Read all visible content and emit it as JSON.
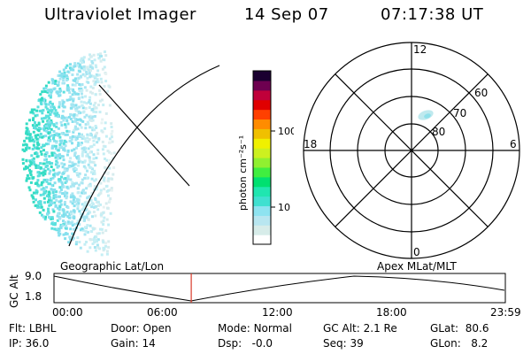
{
  "header": {
    "instrument": "Ultraviolet Imager",
    "date": "14 Sep 07",
    "time": "07:17:38 UT"
  },
  "colorbar": {
    "label": "photon cm⁻²s⁻¹",
    "ticks": [
      "100",
      "10"
    ],
    "colors": [
      "#ffffff",
      "#d7ece9",
      "#b8e6f0",
      "#8ee3f0",
      "#40e0d0",
      "#20e6b0",
      "#00e070",
      "#40ee40",
      "#90f030",
      "#ccf020",
      "#f0f000",
      "#f0c000",
      "#ff8c00",
      "#ff4000",
      "#e00000",
      "#c0003a",
      "#6e0050",
      "#1a0030"
    ]
  },
  "polar": {
    "mlt_labels": [
      "12",
      "18",
      "6",
      "0"
    ],
    "lat_labels": [
      "60",
      "70",
      "80"
    ]
  },
  "timeline": {
    "axis_label": "GC Alt",
    "y_ticks": [
      "9.0",
      "1.8"
    ],
    "left_title": "Geographic Lat/Lon",
    "right_title": "Apex  MLat/MLT",
    "x_ticks": [
      "00:00",
      "06:00",
      "12:00",
      "18:00",
      "23:59"
    ],
    "marker_time": "07:17:38",
    "marker_color": "#d83a2a"
  },
  "info": {
    "row1": [
      {
        "key": "Flt:",
        "value": "LBHL"
      },
      {
        "key": "Door:",
        "value": "Open"
      },
      {
        "key": "Mode:",
        "value": "Normal"
      },
      {
        "key": "GC Alt:",
        "value": "2.1 Re"
      },
      {
        "key": "GLat:",
        "value": "80.6"
      }
    ],
    "row2": [
      {
        "key": "IP:",
        "value": "36.0"
      },
      {
        "key": "Gain:",
        "value": "14"
      },
      {
        "key": "Dsp:",
        "value": "-0.0"
      },
      {
        "key": "Seq:",
        "value": "39"
      },
      {
        "key": "GLon:",
        "value": "8.2"
      }
    ]
  }
}
